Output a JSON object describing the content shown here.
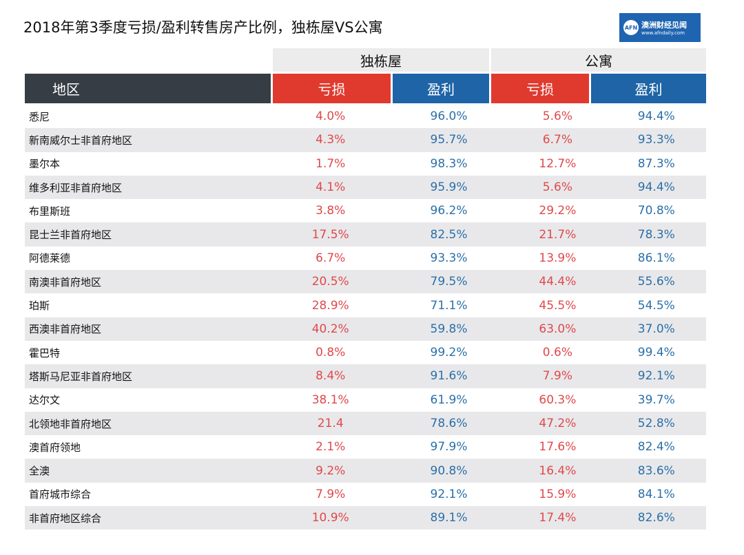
{
  "title": "2018年第3季度亏损/盈利转售房产比例，独栋屋VS公寓",
  "logo": {
    "mark": "AFN",
    "name": "澳洲财经见闻",
    "url": "www.afndaily.com"
  },
  "groups": [
    "独栋屋",
    "公寓"
  ],
  "headers": [
    "地区",
    "亏损",
    "盈利",
    "亏损",
    "盈利"
  ],
  "colors": {
    "dark": "#363d45",
    "loss": "#e03a2f",
    "profit": "#1e64a6"
  },
  "rows": [
    [
      "悉尼",
      "4.0%",
      "96.0%",
      "5.6%",
      "94.4%"
    ],
    [
      "新南威尔士非首府地区",
      "4.3%",
      "95.7%",
      "6.7%",
      "93.3%"
    ],
    [
      "墨尔本",
      "1.7%",
      "98.3%",
      "12.7%",
      "87.3%"
    ],
    [
      "维多利亚非首府地区",
      "4.1%",
      "95.9%",
      "5.6%",
      "94.4%"
    ],
    [
      "布里斯班",
      "3.8%",
      "96.2%",
      "29.2%",
      "70.8%"
    ],
    [
      "昆士兰非首府地区",
      "17.5%",
      "82.5%",
      "21.7%",
      "78.3%"
    ],
    [
      "阿德莱德",
      "6.7%",
      "93.3%",
      "13.9%",
      "86.1%"
    ],
    [
      "南澳非首府地区",
      "20.5%",
      "79.5%",
      "44.4%",
      "55.6%"
    ],
    [
      "珀斯",
      "28.9%",
      "71.1%",
      "45.5%",
      "54.5%"
    ],
    [
      "西澳非首府地区",
      "40.2%",
      "59.8%",
      "63.0%",
      "37.0%"
    ],
    [
      "霍巴特",
      "0.8%",
      "99.2%",
      "0.6%",
      "99.4%"
    ],
    [
      "塔斯马尼亚非首府地区",
      "8.4%",
      "91.6%",
      "7.9%",
      "92.1%"
    ],
    [
      "达尔文",
      "38.1%",
      "61.9%",
      "60.3%",
      "39.7%"
    ],
    [
      "北领地非首府地区",
      "21.4",
      "78.6%",
      "47.2%",
      "52.8%"
    ],
    [
      "澳首府领地",
      "2.1%",
      "97.9%",
      "17.6%",
      "82.4%"
    ],
    [
      "全澳",
      "9.2%",
      "90.8%",
      "16.4%",
      "83.6%"
    ],
    [
      "首府城市综合",
      "7.9%",
      "92.1%",
      "15.9%",
      "84.1%"
    ],
    [
      "非首府地区综合",
      "10.9%",
      "89.1%",
      "17.4%",
      "82.6%"
    ]
  ]
}
